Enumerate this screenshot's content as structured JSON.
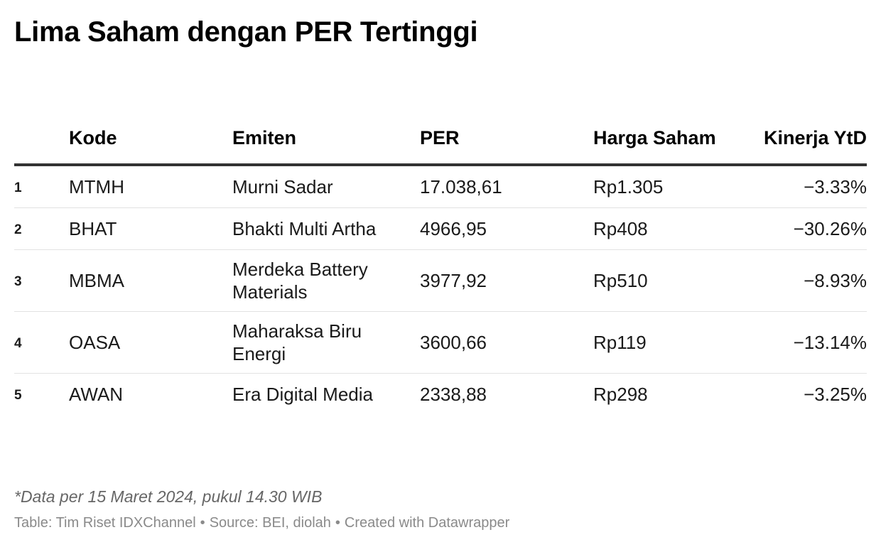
{
  "title": "Lima Saham dengan PER Tertinggi",
  "chart_data": {
    "type": "table",
    "title": "Lima Saham dengan PER Tertinggi",
    "columns": [
      "",
      "Kode",
      "Emiten",
      "PER",
      "Harga Saham",
      "Kinerja YtD"
    ],
    "rows": [
      {
        "rank": "1",
        "code": "MTMH",
        "name": "Murni Sadar",
        "per": "17.038,61",
        "price": "Rp1.305",
        "ytd": "−3.33%"
      },
      {
        "rank": "2",
        "code": "BHAT",
        "name": "Bhakti Multi Artha",
        "per": "4966,95",
        "price": "Rp408",
        "ytd": "−30.26%"
      },
      {
        "rank": "3",
        "code": "MBMA",
        "name": "Merdeka Battery Materials",
        "per": "3977,92",
        "price": "Rp510",
        "ytd": "−8.93%"
      },
      {
        "rank": "4",
        "code": "OASA",
        "name": "Maharaksa Biru Energi",
        "per": "3600,66",
        "price": "Rp119",
        "ytd": "−13.14%"
      },
      {
        "rank": "5",
        "code": "AWAN",
        "name": "Era Digital Media",
        "per": "2338,88",
        "price": "Rp298",
        "ytd": "−3.25%"
      }
    ]
  },
  "notes": "*Data per 15 Maret 2024, pukul 14.30 WIB",
  "footer": {
    "table_credit": "Table: Tim Riset IDXChannel",
    "source": "Source: BEI, diolah",
    "created_with": "Created with Datawrapper",
    "separator": "•"
  }
}
